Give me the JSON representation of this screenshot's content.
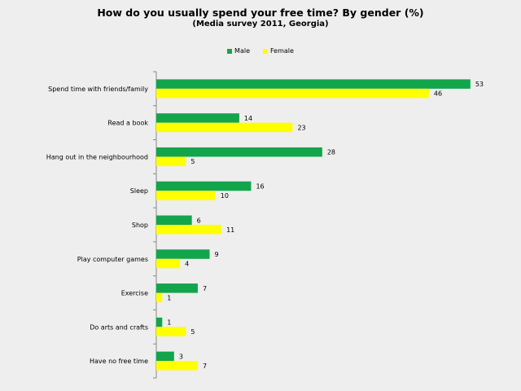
{
  "chart_data": {
    "type": "bar",
    "orientation": "horizontal",
    "title": "How do you usually spend your free time? By gender (%)",
    "subtitle": "(Media survey 2011, Georgia)",
    "categories": [
      "Spend time with friends/family",
      "Read a book",
      "Hang out in the neighbourhood",
      "Sleep",
      "Shop",
      "Play computer games",
      "Exercise",
      "Do arts and crafts",
      "Have no free time"
    ],
    "series": [
      {
        "name": "Male",
        "color": "#13a54b",
        "values": [
          53,
          14,
          28,
          16,
          6,
          9,
          7,
          1,
          3
        ]
      },
      {
        "name": "Female",
        "color": "#ffff00",
        "values": [
          46,
          23,
          5,
          10,
          11,
          4,
          1,
          5,
          7
        ]
      }
    ],
    "xlim": [
      0,
      55
    ],
    "grid": false,
    "legend_position": "top",
    "data_labels": true
  }
}
